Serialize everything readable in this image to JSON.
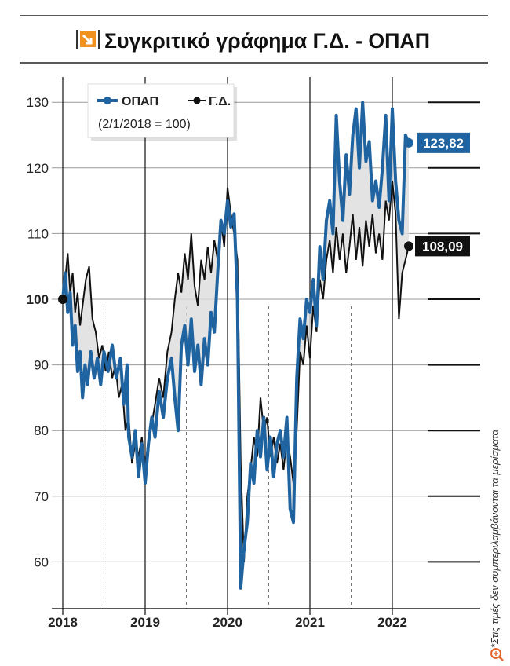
{
  "chart_data": {
    "type": "line",
    "title": "Συγκριτικό γράφημα Γ.Δ. - ΟΠΑΠ",
    "subtitle": "(2/1/2018 = 100)",
    "footnote": "*Στις τιμές δεν συμπεριλαμβάνονται τα μερίσματα",
    "xlabel": "",
    "ylabel": "",
    "ylim": [
      52,
      136
    ],
    "xlim": [
      2018,
      2022.5
    ],
    "yticks": [
      60,
      70,
      80,
      90,
      100,
      110,
      120,
      130
    ],
    "xticks": [
      2018,
      2019,
      2020,
      2021,
      2022
    ],
    "legend": "top-left",
    "grid": true,
    "colors": {
      "opap": "#1f63a0",
      "gd": "#111111",
      "fill": "#dcdcdc",
      "accent": "#f0901e"
    },
    "series": [
      {
        "name": "ΟΠΑΠ",
        "end_label": "123,82",
        "points": [
          [
            2018.0,
            100
          ],
          [
            2018.03,
            104
          ],
          [
            2018.06,
            98
          ],
          [
            2018.09,
            101
          ],
          [
            2018.12,
            93
          ],
          [
            2018.15,
            96
          ],
          [
            2018.18,
            89
          ],
          [
            2018.21,
            92
          ],
          [
            2018.24,
            85
          ],
          [
            2018.27,
            90
          ],
          [
            2018.3,
            87
          ],
          [
            2018.34,
            92
          ],
          [
            2018.38,
            88
          ],
          [
            2018.42,
            91
          ],
          [
            2018.46,
            87
          ],
          [
            2018.5,
            92
          ],
          [
            2018.55,
            89
          ],
          [
            2018.6,
            93
          ],
          [
            2018.65,
            88
          ],
          [
            2018.7,
            91
          ],
          [
            2018.74,
            84
          ],
          [
            2018.78,
            90
          ],
          [
            2018.8,
            79
          ],
          [
            2018.84,
            76
          ],
          [
            2018.88,
            80
          ],
          [
            2018.92,
            73
          ],
          [
            2018.96,
            78
          ],
          [
            2019.0,
            72
          ],
          [
            2019.04,
            78
          ],
          [
            2019.08,
            82
          ],
          [
            2019.12,
            79
          ],
          [
            2019.17,
            86
          ],
          [
            2019.22,
            82
          ],
          [
            2019.27,
            88
          ],
          [
            2019.32,
            91
          ],
          [
            2019.36,
            85
          ],
          [
            2019.4,
            80
          ],
          [
            2019.44,
            93
          ],
          [
            2019.48,
            96
          ],
          [
            2019.52,
            90
          ],
          [
            2019.56,
            97
          ],
          [
            2019.6,
            89
          ],
          [
            2019.64,
            93
          ],
          [
            2019.68,
            87
          ],
          [
            2019.72,
            94
          ],
          [
            2019.76,
            90
          ],
          [
            2019.8,
            98
          ],
          [
            2019.84,
            95
          ],
          [
            2019.88,
            104
          ],
          [
            2019.92,
            112
          ],
          [
            2019.96,
            110
          ],
          [
            2020.0,
            115
          ],
          [
            2020.04,
            111
          ],
          [
            2020.08,
            113
          ],
          [
            2020.12,
            100
          ],
          [
            2020.16,
            56
          ],
          [
            2020.2,
            62
          ],
          [
            2020.24,
            66
          ],
          [
            2020.28,
            75
          ],
          [
            2020.32,
            72
          ],
          [
            2020.36,
            80
          ],
          [
            2020.4,
            76
          ],
          [
            2020.44,
            82
          ],
          [
            2020.48,
            74
          ],
          [
            2020.52,
            79
          ],
          [
            2020.56,
            73
          ],
          [
            2020.6,
            78
          ],
          [
            2020.64,
            80
          ],
          [
            2020.68,
            76
          ],
          [
            2020.72,
            82
          ],
          [
            2020.76,
            68
          ],
          [
            2020.8,
            66
          ],
          [
            2020.84,
            88
          ],
          [
            2020.88,
            97
          ],
          [
            2020.92,
            94
          ],
          [
            2020.96,
            100
          ],
          [
            2021.0,
            98
          ],
          [
            2021.04,
            103
          ],
          [
            2021.08,
            96
          ],
          [
            2021.12,
            108
          ],
          [
            2021.16,
            103
          ],
          [
            2021.2,
            112
          ],
          [
            2021.24,
            115
          ],
          [
            2021.28,
            110
          ],
          [
            2021.32,
            128
          ],
          [
            2021.36,
            118
          ],
          [
            2021.4,
            112
          ],
          [
            2021.44,
            122
          ],
          [
            2021.48,
            116
          ],
          [
            2021.52,
            125
          ],
          [
            2021.56,
            129
          ],
          [
            2021.6,
            120
          ],
          [
            2021.64,
            130
          ],
          [
            2021.68,
            121
          ],
          [
            2021.72,
            124
          ],
          [
            2021.76,
            115
          ],
          [
            2021.8,
            118
          ],
          [
            2021.84,
            114
          ],
          [
            2021.88,
            120
          ],
          [
            2021.92,
            128
          ],
          [
            2021.96,
            115
          ],
          [
            2022.0,
            129
          ],
          [
            2022.04,
            118
          ],
          [
            2022.08,
            112
          ],
          [
            2022.12,
            110
          ],
          [
            2022.16,
            125
          ],
          [
            2022.2,
            123.82
          ]
        ]
      },
      {
        "name": "Γ.Δ.",
        "end_label": "108,09",
        "points": [
          [
            2018.0,
            100
          ],
          [
            2018.03,
            103
          ],
          [
            2018.06,
            107
          ],
          [
            2018.09,
            101
          ],
          [
            2018.12,
            104
          ],
          [
            2018.15,
            98
          ],
          [
            2018.18,
            101
          ],
          [
            2018.21,
            96
          ],
          [
            2018.24,
            99
          ],
          [
            2018.28,
            103
          ],
          [
            2018.32,
            105
          ],
          [
            2018.36,
            97
          ],
          [
            2018.4,
            95
          ],
          [
            2018.44,
            91
          ],
          [
            2018.48,
            93
          ],
          [
            2018.52,
            89
          ],
          [
            2018.56,
            92
          ],
          [
            2018.6,
            88
          ],
          [
            2018.64,
            90
          ],
          [
            2018.68,
            85
          ],
          [
            2018.72,
            87
          ],
          [
            2018.76,
            80
          ],
          [
            2018.8,
            82
          ],
          [
            2018.84,
            75
          ],
          [
            2018.88,
            78
          ],
          [
            2018.92,
            76
          ],
          [
            2018.96,
            79
          ],
          [
            2019.0,
            74
          ],
          [
            2019.04,
            79
          ],
          [
            2019.08,
            81
          ],
          [
            2019.12,
            84
          ],
          [
            2019.17,
            88
          ],
          [
            2019.22,
            85
          ],
          [
            2019.27,
            92
          ],
          [
            2019.32,
            95
          ],
          [
            2019.36,
            100
          ],
          [
            2019.4,
            104
          ],
          [
            2019.44,
            101
          ],
          [
            2019.48,
            107
          ],
          [
            2019.52,
            103
          ],
          [
            2019.56,
            110
          ],
          [
            2019.6,
            102
          ],
          [
            2019.64,
            99
          ],
          [
            2019.68,
            106
          ],
          [
            2019.72,
            103
          ],
          [
            2019.76,
            108
          ],
          [
            2019.8,
            104
          ],
          [
            2019.84,
            109
          ],
          [
            2019.88,
            106
          ],
          [
            2019.92,
            112
          ],
          [
            2019.96,
            108
          ],
          [
            2020.0,
            117
          ],
          [
            2020.04,
            113
          ],
          [
            2020.08,
            110
          ],
          [
            2020.12,
            106
          ],
          [
            2020.16,
            75
          ],
          [
            2020.2,
            60
          ],
          [
            2020.24,
            70
          ],
          [
            2020.28,
            74
          ],
          [
            2020.32,
            79
          ],
          [
            2020.36,
            76
          ],
          [
            2020.4,
            85
          ],
          [
            2020.44,
            80
          ],
          [
            2020.48,
            82
          ],
          [
            2020.52,
            76
          ],
          [
            2020.56,
            79
          ],
          [
            2020.6,
            75
          ],
          [
            2020.64,
            78
          ],
          [
            2020.68,
            74
          ],
          [
            2020.72,
            79
          ],
          [
            2020.76,
            76
          ],
          [
            2020.8,
            72
          ],
          [
            2020.84,
            80
          ],
          [
            2020.88,
            92
          ],
          [
            2020.92,
            90
          ],
          [
            2020.96,
            96
          ],
          [
            2021.0,
            91
          ],
          [
            2021.04,
            99
          ],
          [
            2021.08,
            95
          ],
          [
            2021.12,
            103
          ],
          [
            2021.16,
            100
          ],
          [
            2021.2,
            106
          ],
          [
            2021.24,
            109
          ],
          [
            2021.28,
            104
          ],
          [
            2021.32,
            111
          ],
          [
            2021.36,
            106
          ],
          [
            2021.4,
            110
          ],
          [
            2021.44,
            104
          ],
          [
            2021.48,
            108
          ],
          [
            2021.52,
            113
          ],
          [
            2021.56,
            106
          ],
          [
            2021.6,
            111
          ],
          [
            2021.64,
            105
          ],
          [
            2021.68,
            112
          ],
          [
            2021.72,
            108
          ],
          [
            2021.76,
            113
          ],
          [
            2021.8,
            107
          ],
          [
            2021.84,
            110
          ],
          [
            2021.88,
            106
          ],
          [
            2021.92,
            115
          ],
          [
            2021.96,
            112
          ],
          [
            2022.0,
            118
          ],
          [
            2022.04,
            113
          ],
          [
            2022.08,
            97
          ],
          [
            2022.12,
            104
          ],
          [
            2022.16,
            106
          ],
          [
            2022.2,
            108.09
          ]
        ]
      }
    ]
  }
}
